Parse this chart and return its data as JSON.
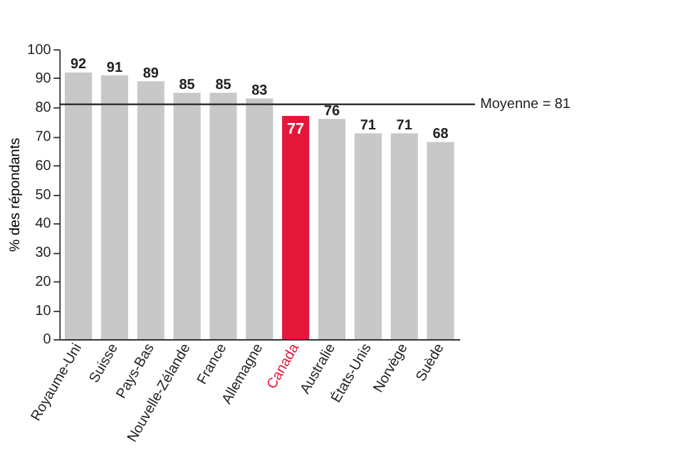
{
  "chart_data": {
    "type": "bar",
    "ylabel": "% des répondants",
    "categories": [
      "Royaume-Uni",
      "Suisse",
      "Pays-Bas",
      "Nouvelle-Zélande",
      "France",
      "Allemagne",
      "Canada",
      "Australie",
      "États-Unis",
      "Norvège",
      "Suède"
    ],
    "values": [
      92,
      91,
      89,
      85,
      85,
      83,
      77,
      76,
      71,
      71,
      68
    ],
    "colors": [
      "#c8c8c8",
      "#c8c8c8",
      "#c8c8c8",
      "#c8c8c8",
      "#c8c8c8",
      "#c8c8c8",
      "#e3173a",
      "#c8c8c8",
      "#c8c8c8",
      "#c8c8c8",
      "#c8c8c8"
    ],
    "ylim": [
      0,
      100
    ],
    "yticks": [
      0,
      10,
      20,
      30,
      40,
      50,
      60,
      70,
      80,
      90,
      100
    ],
    "ref_lines": [
      {
        "axis": "y",
        "value": 81,
        "label": "Moyenne = 81",
        "color": "#333333"
      }
    ],
    "data_labels": true,
    "grid": false
  }
}
